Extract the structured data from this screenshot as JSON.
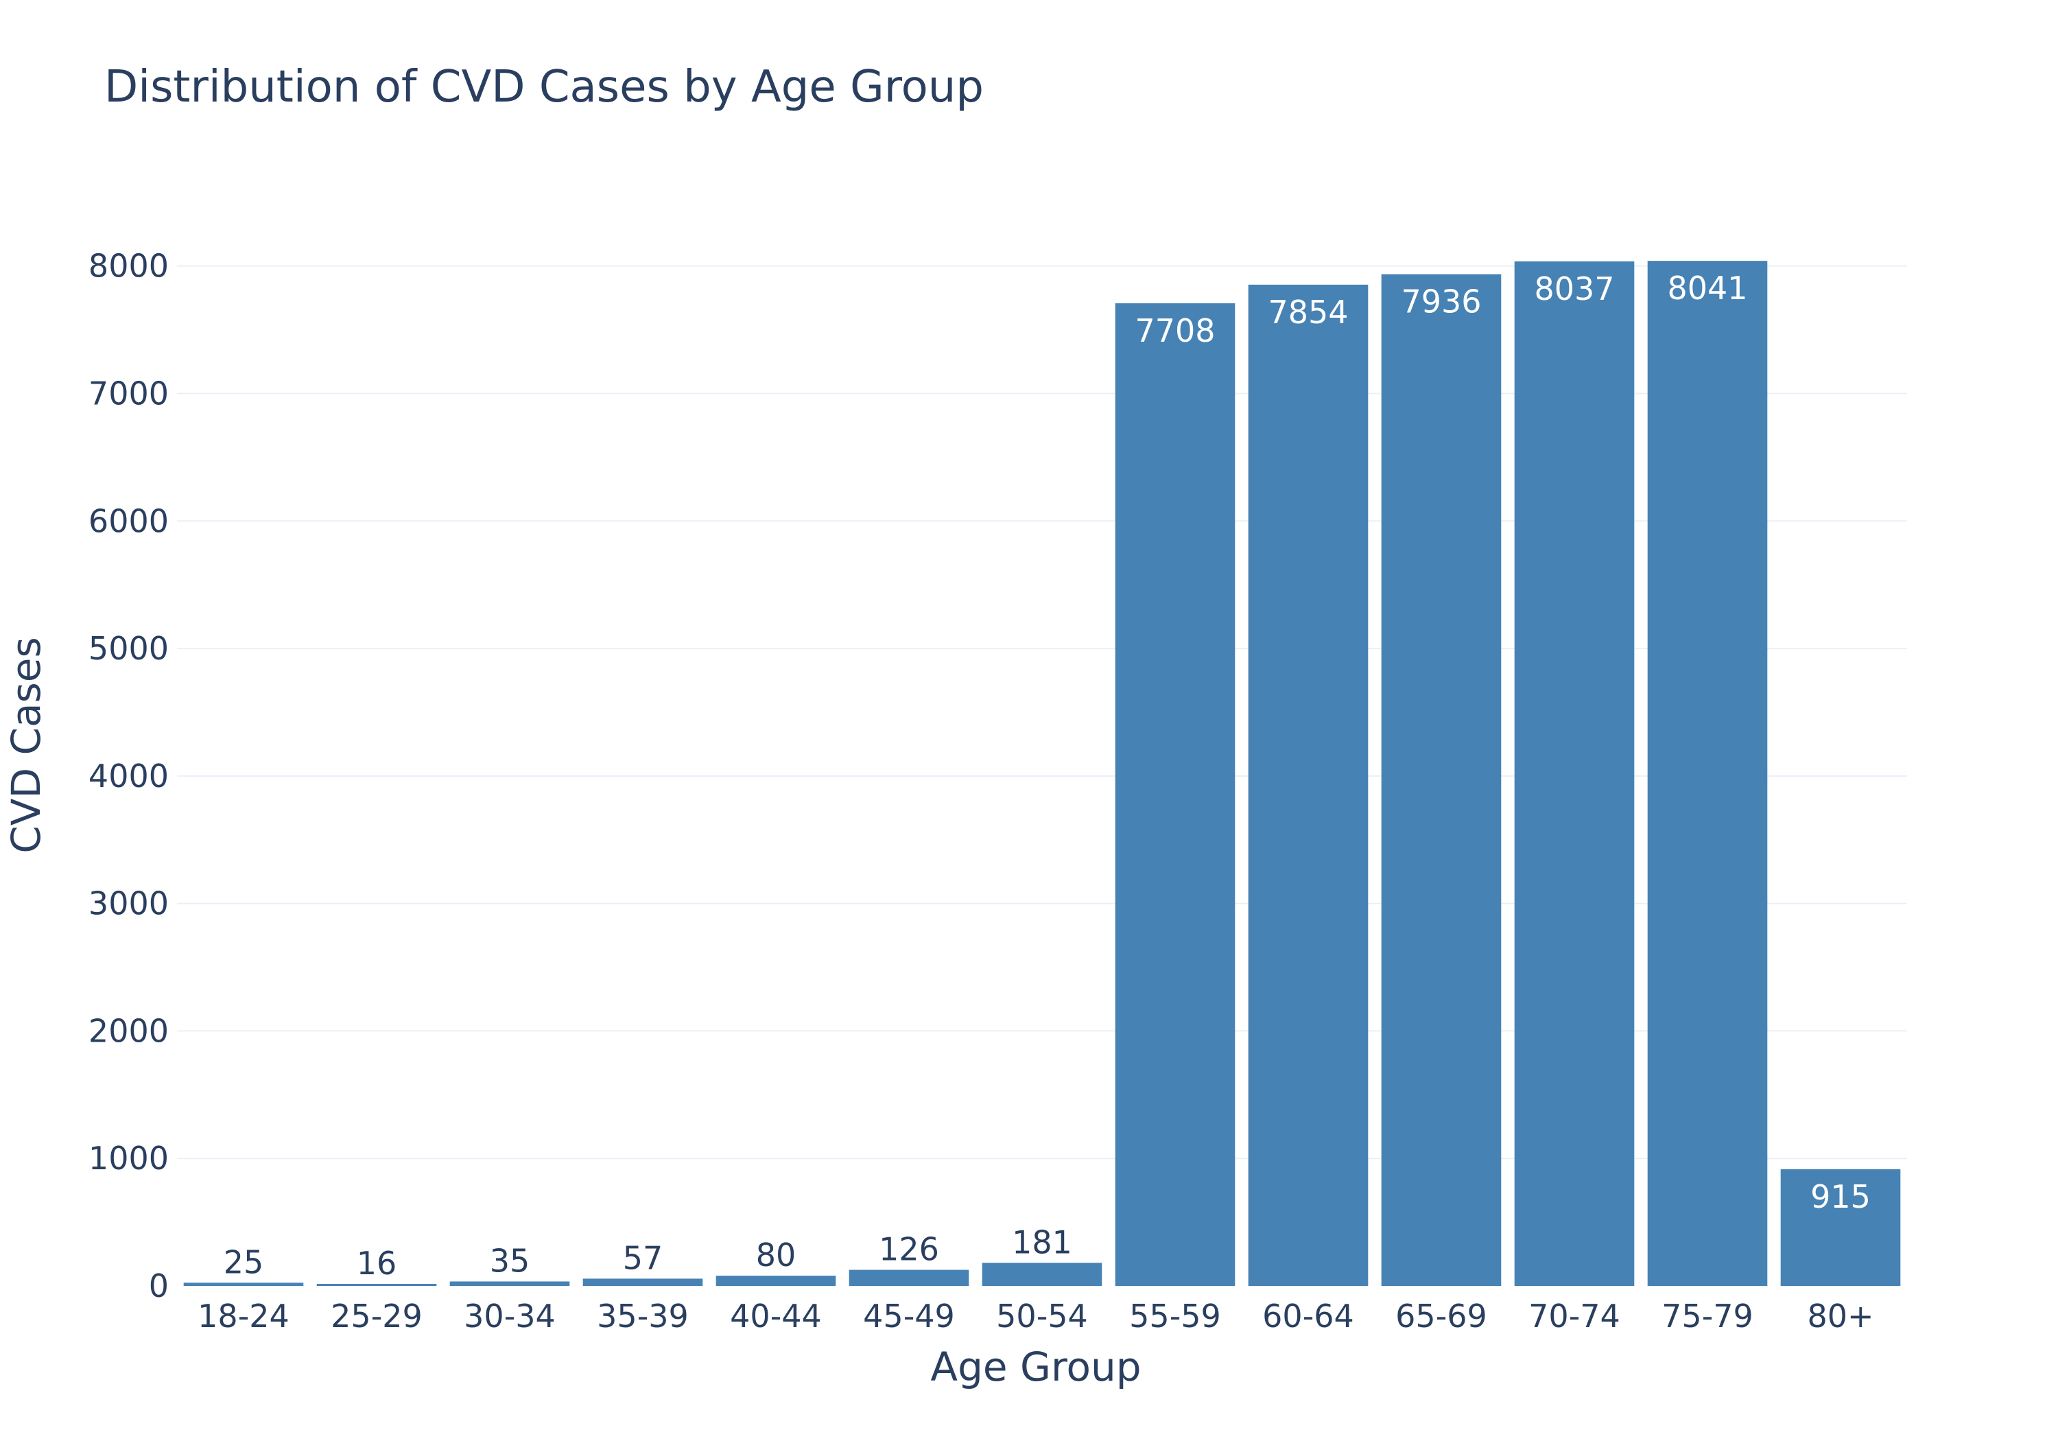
{
  "chart_data": {
    "type": "bar",
    "title": "Distribution of CVD Cases by Age Group",
    "xlabel": "Age Group",
    "ylabel": "CVD Cases",
    "categories": [
      "18-24",
      "25-29",
      "30-34",
      "35-39",
      "40-44",
      "45-49",
      "50-54",
      "55-59",
      "60-64",
      "65-69",
      "70-74",
      "75-79",
      "80+"
    ],
    "values": [
      25,
      16,
      35,
      57,
      80,
      126,
      181,
      7708,
      7854,
      7936,
      8037,
      8041,
      915
    ],
    "ylim": [
      0,
      8440
    ],
    "yticks": [
      0,
      1000,
      2000,
      3000,
      4000,
      5000,
      6000,
      7000,
      8000
    ],
    "grid": true,
    "bar_color": "#4682b4",
    "text_color": "#2a3f5f",
    "grid_color": "#ebf0f8"
  }
}
